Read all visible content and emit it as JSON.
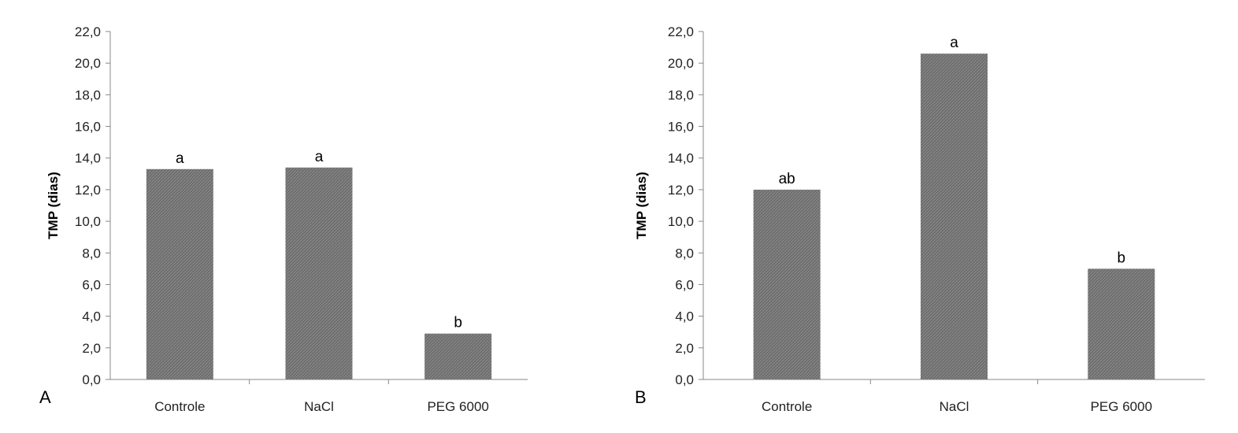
{
  "colors": {
    "bar": "#6e6e6e",
    "axis": "#888888"
  },
  "chart_data": [
    {
      "type": "bar",
      "panel_label": "A",
      "title": "",
      "xlabel": "",
      "ylabel": "TMP (dias)",
      "ylim": [
        0,
        22
      ],
      "ytick_step": 2,
      "ytick_labels": [
        "0,0",
        "2,0",
        "4,0",
        "6,0",
        "8,0",
        "10,0",
        "12,0",
        "14,0",
        "16,0",
        "18,0",
        "20,0",
        "22,0"
      ],
      "categories": [
        "Controle",
        "NaCl",
        "PEG 6000"
      ],
      "values": [
        13.3,
        13.4,
        2.9
      ],
      "data_labels": [
        "a",
        "a",
        "b"
      ],
      "grid": false,
      "legend": "none"
    },
    {
      "type": "bar",
      "panel_label": "B",
      "title": "",
      "xlabel": "",
      "ylabel": "TMP (dias)",
      "ylim": [
        0,
        22
      ],
      "ytick_step": 2,
      "ytick_labels": [
        "0,0",
        "2,0",
        "4,0",
        "6,0",
        "8,0",
        "10,0",
        "12,0",
        "14,0",
        "16,0",
        "18,0",
        "20,0",
        "22,0"
      ],
      "categories": [
        "Controle",
        "NaCl",
        "PEG 6000"
      ],
      "values": [
        12.0,
        20.6,
        7.0
      ],
      "data_labels": [
        "ab",
        "a",
        "b"
      ],
      "grid": false,
      "legend": "none"
    }
  ]
}
